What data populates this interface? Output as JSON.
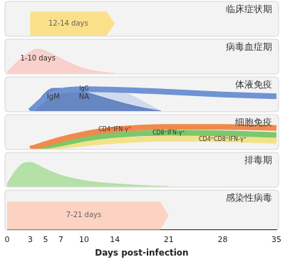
{
  "chart_data": {
    "type": "line",
    "x_label": "Days post-infection",
    "xlim": [
      0,
      35
    ],
    "xticks": [
      0,
      3,
      5,
      7,
      10,
      14,
      21,
      28,
      35
    ],
    "ylim": [
      0,
      1.25
    ],
    "tick_labels": "x",
    "grid": false,
    "rows": [
      {
        "label": "临床症状期",
        "series": [
          {
            "name": "12-14 days",
            "type": "arrow",
            "color": "#fbe08a",
            "x": [
              3,
              14
            ],
            "values": [
              0.9,
              0.9
            ]
          }
        ]
      },
      {
        "label": "病毒血症期",
        "series": [
          {
            "name": "1-10 days",
            "type": "area",
            "color": "#f9c9c4",
            "x": [
              0,
              2,
              4,
              6,
              8,
              10,
              12,
              14
            ],
            "values": [
              0.05,
              0.6,
              0.9,
              0.7,
              0.4,
              0.18,
              0.06,
              0
            ]
          }
        ]
      },
      {
        "label": "体液免疫",
        "series": [
          {
            "name": "IgM",
            "type": "area",
            "color": "#5578bb",
            "x": [
              3,
              4,
              5,
              6,
              7,
              8,
              10,
              12,
              15,
              18,
              20
            ],
            "values": [
              0,
              0.35,
              0.7,
              0.85,
              0.85,
              0.82,
              0.72,
              0.55,
              0.3,
              0.1,
              0
            ]
          },
          {
            "name": "NA",
            "type": "area",
            "color": "#c9d6ee",
            "x": [
              3,
              5,
              7,
              10,
              13,
              16,
              18,
              20
            ],
            "values": [
              0,
              0.6,
              0.8,
              0.85,
              0.8,
              0.6,
              0.3,
              0
            ]
          },
          {
            "name": "IgG",
            "type": "line",
            "color": "#6f93d3",
            "x": [
              3,
              5,
              7,
              10,
              14,
              21,
              28,
              35
            ],
            "values": [
              0,
              0.5,
              0.75,
              0.82,
              0.8,
              0.72,
              0.62,
              0.55
            ]
          }
        ]
      },
      {
        "label": "细胞免疫",
        "series": [
          {
            "name": "CD4⁺IFN-γ⁺",
            "type": "line",
            "color": "#f08a4b",
            "x": [
              3,
              7,
              10,
              14,
              21,
              28,
              35
            ],
            "values": [
              0,
              0.35,
              0.55,
              0.72,
              0.82,
              0.82,
              0.78
            ]
          },
          {
            "name": "CD8⁺IFN-γ⁺",
            "type": "line",
            "color": "#7cc86a",
            "x": [
              3,
              7,
              10,
              14,
              21,
              28,
              35
            ],
            "values": [
              0,
              0.2,
              0.38,
              0.52,
              0.6,
              0.58,
              0.52
            ]
          },
          {
            "name": "CD4⁺CD8⁺IFN-γ⁺",
            "type": "line",
            "color": "#f2e28a",
            "x": [
              3,
              7,
              10,
              14,
              21,
              28,
              35
            ],
            "values": [
              0,
              0.1,
              0.2,
              0.3,
              0.38,
              0.36,
              0.3
            ]
          }
        ]
      },
      {
        "label": "排毒期",
        "series": [
          {
            "type": "area",
            "color": "#a8dd9a",
            "x": [
              0,
              1,
              2,
              3,
              4,
              5,
              7,
              10,
              14,
              18,
              21
            ],
            "values": [
              0.1,
              0.55,
              0.85,
              0.9,
              0.8,
              0.65,
              0.42,
              0.22,
              0.1,
              0.03,
              0
            ]
          }
        ]
      },
      {
        "label": "感染性病毒",
        "series": [
          {
            "name": "7-21 days",
            "type": "arrow",
            "color": "#fcd2c2",
            "x": [
              0,
              21
            ],
            "values": [
              0.9,
              0.9
            ]
          }
        ]
      }
    ]
  }
}
